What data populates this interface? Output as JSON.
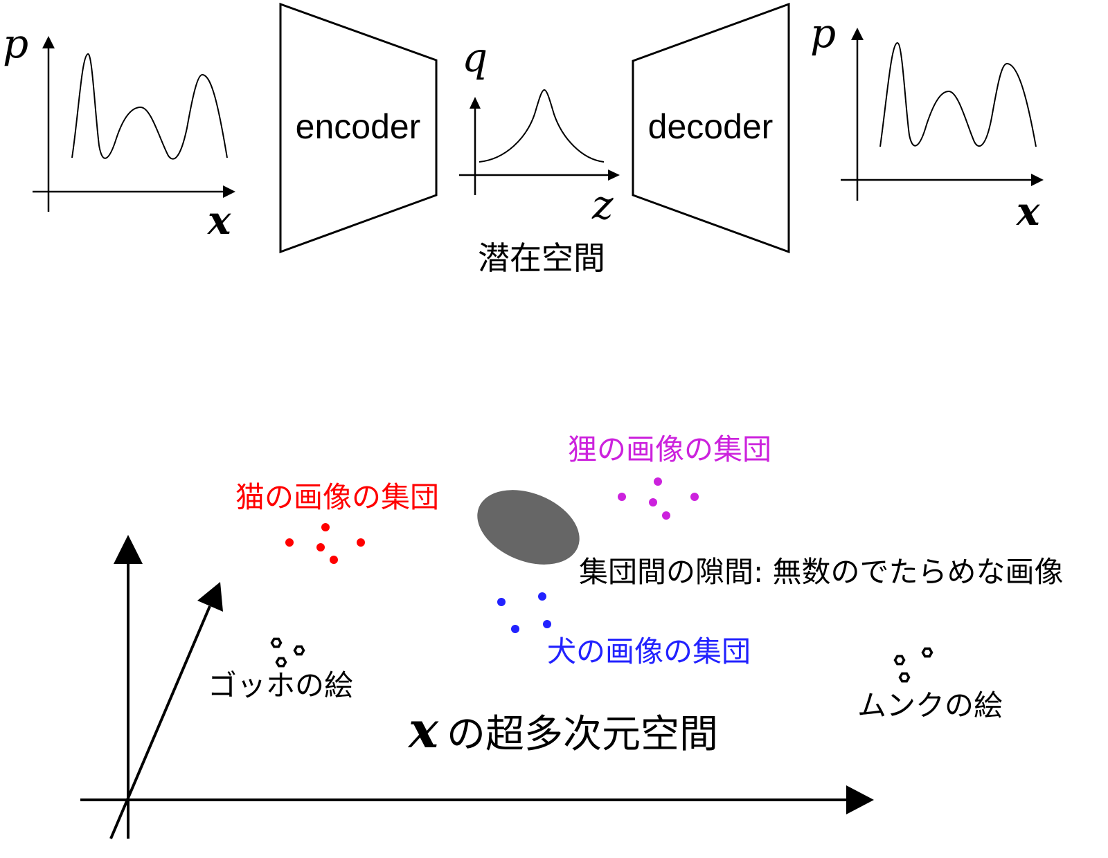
{
  "top": {
    "left_plot": {
      "y_label": "p",
      "x_label": "x"
    },
    "encoder_label": "encoder",
    "latent_plot": {
      "y_label": "q",
      "x_label": "z"
    },
    "latent_caption": "潜在空間",
    "decoder_label": "decoder",
    "right_plot": {
      "y_label": "p",
      "x_label": "x"
    }
  },
  "bottom": {
    "clusters": {
      "cat": {
        "label": "猫の画像の集団",
        "color": "#ff0000"
      },
      "tanuki": {
        "label": "狸の画像の集団",
        "color": "#cc22dd"
      },
      "dog": {
        "label": "犬の画像の集団",
        "color": "#2222ff"
      }
    },
    "gap_label": "集団間の隙間: 無数のでたらめな画像",
    "gap_color": "#666666",
    "gogh_label": "ゴッホの絵",
    "munch_label": "ムンクの絵",
    "space_title": {
      "var": "x",
      "text": "の超多次元空間"
    }
  }
}
